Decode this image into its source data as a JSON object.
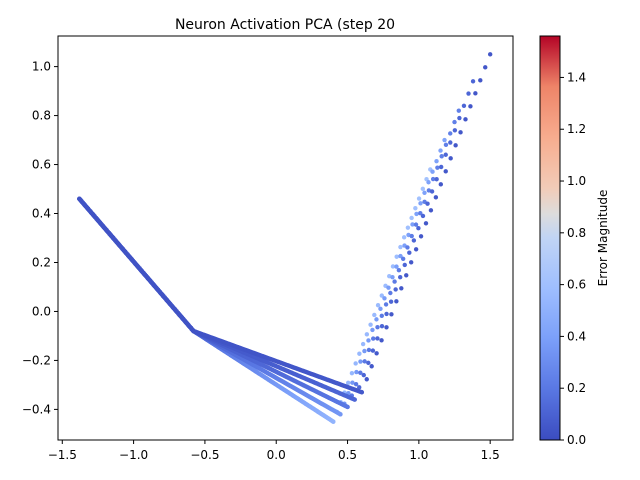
{
  "chart_data": {
    "type": "scatter",
    "title": "Neuron Activation PCA (step 20",
    "xlabel": "",
    "ylabel": "",
    "xlim": [
      -1.53,
      1.66
    ],
    "ylim": [
      -0.525,
      1.125
    ],
    "x_ticks": [
      -1.5,
      -1.0,
      -0.5,
      0.0,
      0.5,
      1.0,
      1.5
    ],
    "x_tick_labels": [
      "−1.5",
      "−1.0",
      "−0.5",
      "0.0",
      "0.5",
      "1.0",
      "1.5"
    ],
    "y_ticks": [
      -0.4,
      -0.2,
      0.0,
      0.2,
      0.4,
      0.6,
      0.8,
      1.0
    ],
    "y_tick_labels": [
      "−0.4",
      "−0.2",
      "0.0",
      "0.2",
      "0.4",
      "0.6",
      "0.8",
      "1.0"
    ],
    "grid": false,
    "colormap": "coolwarm",
    "colorbar": {
      "label": "Error Magnitude",
      "range": [
        0.0,
        1.56
      ],
      "ticks": [
        0.0,
        0.2,
        0.4,
        0.6,
        0.8,
        1.0,
        1.2,
        1.4
      ],
      "tick_labels": [
        "0.0",
        "0.2",
        "0.4",
        "0.6",
        "0.8",
        "1.0",
        "1.2",
        "1.4"
      ]
    },
    "series": [
      {
        "description_vertices": "trajectory 1",
        "start": [
          -1.38,
          0.46
        ],
        "knee": [
          -0.58,
          -0.08
        ],
        "valley": [
          0.4,
          -0.45
        ],
        "end": [
          1.08,
          0.58
        ],
        "error_left": 0.12,
        "error_valley": 0.52,
        "error_right": 0.62
      },
      {
        "start": [
          -1.38,
          0.46
        ],
        "knee": [
          -0.58,
          -0.08
        ],
        "valley": [
          0.45,
          -0.42
        ],
        "end": [
          1.18,
          0.7
        ],
        "error_left": 0.08,
        "error_valley": 0.35,
        "error_right": 0.42
      },
      {
        "start": [
          -1.38,
          0.46
        ],
        "knee": [
          -0.58,
          -0.08
        ],
        "valley": [
          0.5,
          -0.39
        ],
        "end": [
          1.28,
          0.82
        ],
        "error_left": 0.06,
        "error_valley": 0.2,
        "error_right": 0.24
      },
      {
        "start": [
          -1.38,
          0.46
        ],
        "knee": [
          -0.58,
          -0.08
        ],
        "valley": [
          0.55,
          -0.36
        ],
        "end": [
          1.38,
          0.94
        ],
        "error_left": 0.04,
        "error_valley": 0.12,
        "error_right": 0.12
      },
      {
        "start": [
          -1.38,
          0.46
        ],
        "knee": [
          -0.58,
          -0.08
        ],
        "valley": [
          0.6,
          -0.33
        ],
        "end": [
          1.5,
          1.05
        ],
        "error_left": 0.03,
        "error_valley": 0.06,
        "error_right": 0.05
      }
    ]
  }
}
